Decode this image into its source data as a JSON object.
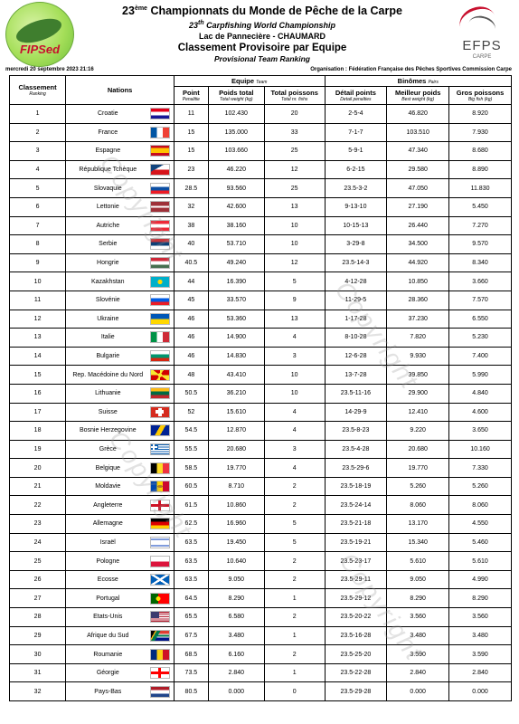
{
  "header": {
    "title_main": "Championnats du Monde de Pêche de la Carpe",
    "title_prefix": "23",
    "title_sup": "ème",
    "subtitle_prefix": "23",
    "subtitle_sup": "th",
    "subtitle_en": "Carpfishing World Championship",
    "venue": "Lac de Pannecière - CHAUMARD",
    "classification": "Classement Provisoire par Equipe",
    "classification_en": "Provisional Team Ranking",
    "date": "mercredi 20 septembre 2023 21:16",
    "organisation": "Organisation : Fédération Française des Pêches Sportives Commission Carpe",
    "logo_left_text": "FIPSed",
    "logo_right_text": "EFPS",
    "logo_right_sub": "CARPE",
    "watermark": "Copyright"
  },
  "table": {
    "col_rank": "Classement",
    "col_rank_en": "Ranking",
    "col_nations": "Nations",
    "group_team": "Equipe",
    "group_team_en": "Team",
    "group_pairs": "Binômes",
    "group_pairs_en": "Pairs",
    "col_point": "Point",
    "col_point_en": "Penalitie",
    "col_weight": "Poids total",
    "col_weight_en": "Total weight (kg)",
    "col_fish": "Total poissons",
    "col_fish_en": "Total nr. fishs",
    "col_detail": "Détail points",
    "col_detail_en": "Detail penalties",
    "col_best": "Meilleur poids",
    "col_best_en": "Best weight (kg)",
    "col_big": "Gros poissons",
    "col_big_en": "Big fish (kg)"
  },
  "rows": [
    {
      "rank": "1",
      "nation": "Croatie",
      "flag": "croatia",
      "point": "11",
      "weight": "102.430",
      "fish": "20",
      "detail": "2-5-4",
      "best": "46.820",
      "big": "8.920"
    },
    {
      "rank": "2",
      "nation": "France",
      "flag": "france",
      "point": "15",
      "weight": "135.000",
      "fish": "33",
      "detail": "7-1-7",
      "best": "103.510",
      "big": "7.930"
    },
    {
      "rank": "3",
      "nation": "Espagne",
      "flag": "spain",
      "point": "15",
      "weight": "103.660",
      "fish": "25",
      "detail": "5-9-1",
      "best": "47.340",
      "big": "8.680"
    },
    {
      "rank": "4",
      "nation": "République Tchèque",
      "flag": "czech",
      "point": "23",
      "weight": "46.220",
      "fish": "12",
      "detail": "6-2-15",
      "best": "29.580",
      "big": "8.890"
    },
    {
      "rank": "5",
      "nation": "Slovaquie",
      "flag": "slovakia",
      "point": "28.5",
      "weight": "93.560",
      "fish": "25",
      "detail": "23.5-3-2",
      "best": "47.050",
      "big": "11.830"
    },
    {
      "rank": "6",
      "nation": "Lettonie",
      "flag": "latvia",
      "point": "32",
      "weight": "42.600",
      "fish": "13",
      "detail": "9-13-10",
      "best": "27.190",
      "big": "5.450"
    },
    {
      "rank": "7",
      "nation": "Autriche",
      "flag": "austria",
      "point": "38",
      "weight": "38.160",
      "fish": "10",
      "detail": "10-15-13",
      "best": "26.440",
      "big": "7.270"
    },
    {
      "rank": "8",
      "nation": "Serbie",
      "flag": "serbia",
      "point": "40",
      "weight": "53.710",
      "fish": "10",
      "detail": "3-29-8",
      "best": "34.500",
      "big": "9.570"
    },
    {
      "rank": "9",
      "nation": "Hongrie",
      "flag": "hungary",
      "point": "40.5",
      "weight": "49.240",
      "fish": "12",
      "detail": "23.5-14-3",
      "best": "44.920",
      "big": "8.340"
    },
    {
      "rank": "10",
      "nation": "Kazakhstan",
      "flag": "kazakhstan",
      "point": "44",
      "weight": "16.390",
      "fish": "5",
      "detail": "4-12-28",
      "best": "10.850",
      "big": "3.660"
    },
    {
      "rank": "11",
      "nation": "Slovénie",
      "flag": "slovenia",
      "point": "45",
      "weight": "33.570",
      "fish": "9",
      "detail": "11-29-5",
      "best": "28.360",
      "big": "7.570"
    },
    {
      "rank": "12",
      "nation": "Ukraine",
      "flag": "ukraine",
      "point": "46",
      "weight": "53.360",
      "fish": "13",
      "detail": "1-17-28",
      "best": "37.230",
      "big": "6.550"
    },
    {
      "rank": "13",
      "nation": "Italie",
      "flag": "italy",
      "point": "46",
      "weight": "14.900",
      "fish": "4",
      "detail": "8-10-28",
      "best": "7.820",
      "big": "5.230"
    },
    {
      "rank": "14",
      "nation": "Bulgarie",
      "flag": "bulgaria",
      "point": "46",
      "weight": "14.830",
      "fish": "3",
      "detail": "12-6-28",
      "best": "9.930",
      "big": "7.400"
    },
    {
      "rank": "15",
      "nation": "Rep. Macédoine du Nord",
      "flag": "macedonia",
      "point": "48",
      "weight": "43.410",
      "fish": "10",
      "detail": "13-7-28",
      "best": "39.850",
      "big": "5.990"
    },
    {
      "rank": "16",
      "nation": "Lithuanie",
      "flag": "lithuania",
      "point": "50.5",
      "weight": "36.210",
      "fish": "10",
      "detail": "23.5-11-16",
      "best": "29.900",
      "big": "4.840"
    },
    {
      "rank": "17",
      "nation": "Suisse",
      "flag": "switzerland",
      "point": "52",
      "weight": "15.610",
      "fish": "4",
      "detail": "14-29-9",
      "best": "12.410",
      "big": "4.600"
    },
    {
      "rank": "18",
      "nation": "Bosnie Herzegovine",
      "flag": "bosnia",
      "point": "54.5",
      "weight": "12.870",
      "fish": "4",
      "detail": "23.5-8-23",
      "best": "9.220",
      "big": "3.650"
    },
    {
      "rank": "19",
      "nation": "Grèce",
      "flag": "greece",
      "point": "55.5",
      "weight": "20.680",
      "fish": "3",
      "detail": "23.5-4-28",
      "best": "20.680",
      "big": "10.160"
    },
    {
      "rank": "20",
      "nation": "Belgique",
      "flag": "belgium",
      "point": "58.5",
      "weight": "19.770",
      "fish": "4",
      "detail": "23.5-29-6",
      "best": "19.770",
      "big": "7.330"
    },
    {
      "rank": "21",
      "nation": "Moldavie",
      "flag": "moldova",
      "point": "60.5",
      "weight": "8.710",
      "fish": "2",
      "detail": "23.5-18-19",
      "best": "5.260",
      "big": "5.260"
    },
    {
      "rank": "22",
      "nation": "Angleterre",
      "flag": "england",
      "point": "61.5",
      "weight": "10.860",
      "fish": "2",
      "detail": "23.5-24-14",
      "best": "8.060",
      "big": "8.060"
    },
    {
      "rank": "23",
      "nation": "Allemagne",
      "flag": "germany",
      "point": "62.5",
      "weight": "16.960",
      "fish": "5",
      "detail": "23.5-21-18",
      "best": "13.170",
      "big": "4.550"
    },
    {
      "rank": "24",
      "nation": "Israël",
      "flag": "israel",
      "point": "63.5",
      "weight": "19.450",
      "fish": "5",
      "detail": "23.5-19-21",
      "best": "15.340",
      "big": "5.460"
    },
    {
      "rank": "25",
      "nation": "Pologne",
      "flag": "poland",
      "point": "63.5",
      "weight": "10.640",
      "fish": "2",
      "detail": "23.5-23-17",
      "best": "5.610",
      "big": "5.610"
    },
    {
      "rank": "26",
      "nation": "Ecosse",
      "flag": "scotland",
      "point": "63.5",
      "weight": "9.050",
      "fish": "2",
      "detail": "23.5-29-11",
      "best": "9.050",
      "big": "4.990"
    },
    {
      "rank": "27",
      "nation": "Portugal",
      "flag": "portugal",
      "point": "64.5",
      "weight": "8.290",
      "fish": "1",
      "detail": "23.5-29-12",
      "best": "8.290",
      "big": "8.290"
    },
    {
      "rank": "28",
      "nation": "Etats-Unis",
      "flag": "usa",
      "point": "65.5",
      "weight": "6.580",
      "fish": "2",
      "detail": "23.5-20-22",
      "best": "3.560",
      "big": "3.560"
    },
    {
      "rank": "29",
      "nation": "Afrique du Sud",
      "flag": "southafrica",
      "point": "67.5",
      "weight": "3.480",
      "fish": "1",
      "detail": "23.5-16-28",
      "best": "3.480",
      "big": "3.480"
    },
    {
      "rank": "30",
      "nation": "Roumanie",
      "flag": "romania",
      "point": "68.5",
      "weight": "6.160",
      "fish": "2",
      "detail": "23.5-25-20",
      "best": "3.590",
      "big": "3.590"
    },
    {
      "rank": "31",
      "nation": "Géorgie",
      "flag": "georgia",
      "point": "73.5",
      "weight": "2.840",
      "fish": "1",
      "detail": "23.5-22-28",
      "best": "2.840",
      "big": "2.840"
    },
    {
      "rank": "32",
      "nation": "Pays-Bas",
      "flag": "netherlands",
      "point": "80.5",
      "weight": "0.000",
      "fish": "0",
      "detail": "23.5-29-28",
      "best": "0.000",
      "big": "0.000"
    }
  ]
}
